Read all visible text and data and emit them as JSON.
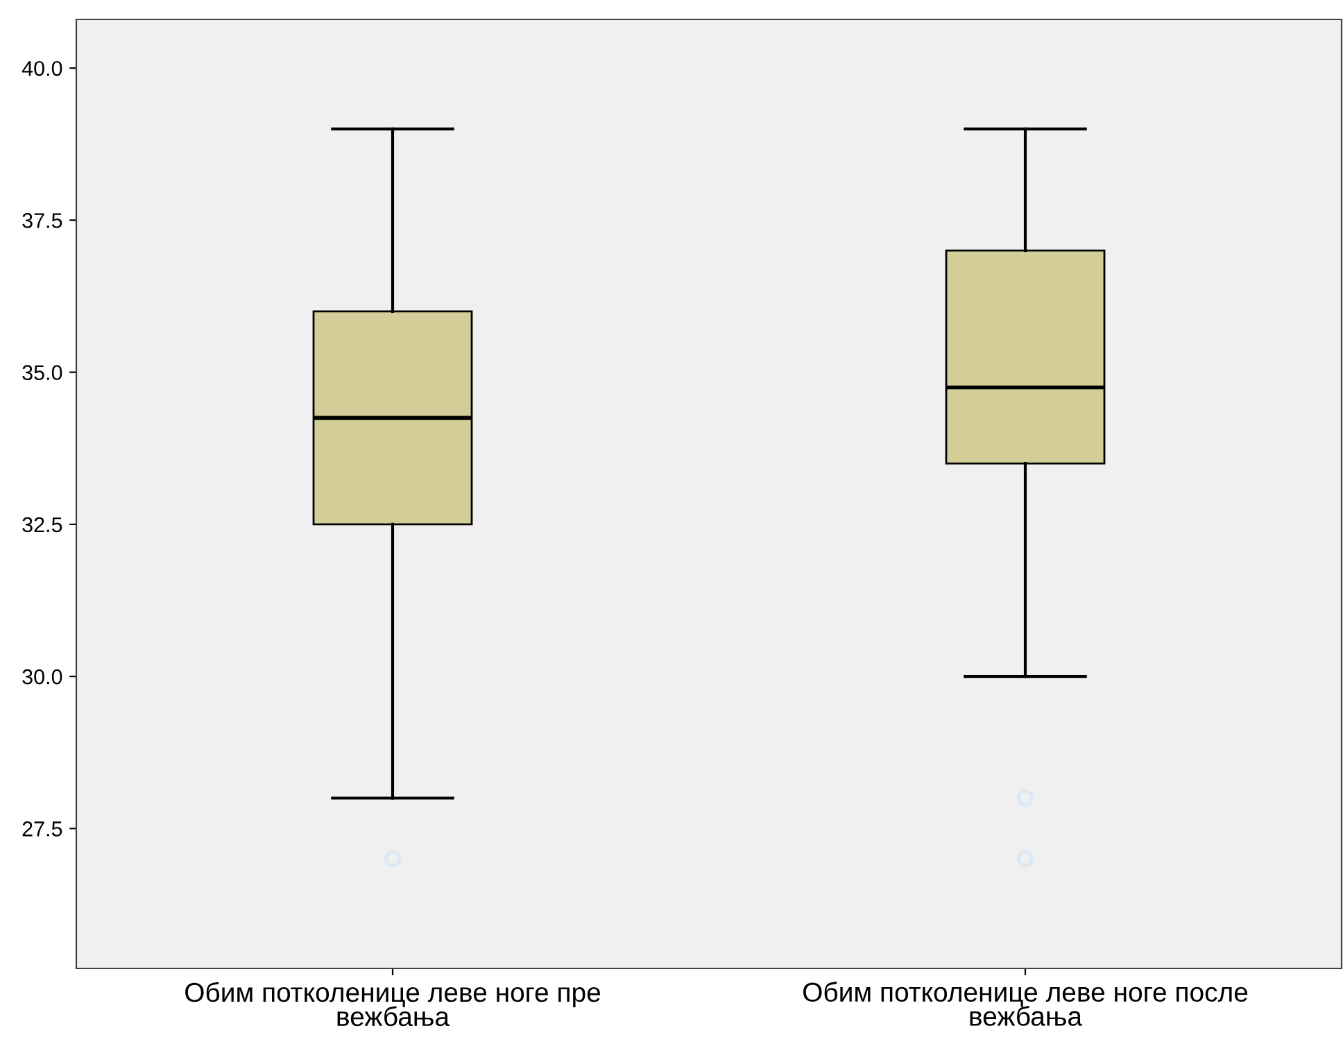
{
  "chart_data": {
    "type": "box",
    "categories": [
      "Обим потколенице леве ноге пре\nвежбања",
      "Обим потколенице леве ноге после\nвежбања"
    ],
    "boxes": [
      {
        "low": 28,
        "q1": 32.5,
        "median": 34.25,
        "q3": 36,
        "high": 39,
        "outliers": [
          27
        ]
      },
      {
        "low": 30,
        "q1": 33.5,
        "median": 34.75,
        "q3": 37,
        "high": 39,
        "outliers": [
          28,
          27
        ]
      }
    ],
    "color": "#d3ce97",
    "ylim": [
      25.2,
      40.8
    ],
    "yticks": [
      {
        "value": 27.5,
        "label": "27.5"
      },
      {
        "value": 30,
        "label": "30.0"
      },
      {
        "value": 32.5,
        "label": "32.5"
      },
      {
        "value": 35,
        "label": "35.0"
      },
      {
        "value": 37.5,
        "label": "37.5"
      },
      {
        "value": 40,
        "label": "40.0"
      }
    ],
    "grid": false
  }
}
